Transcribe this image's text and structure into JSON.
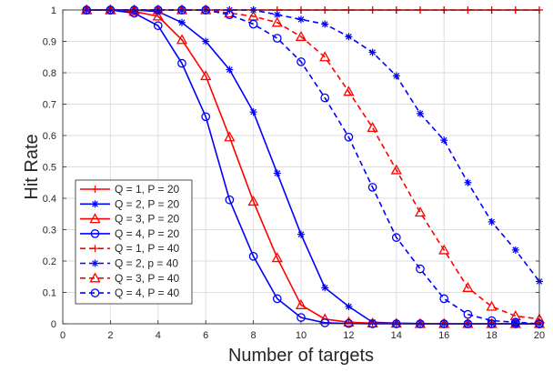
{
  "chart_data": {
    "type": "line",
    "title": "",
    "xlabel": "Number of targets",
    "ylabel": "Hit Rate",
    "xlim": [
      0,
      20
    ],
    "ylim": [
      0,
      1
    ],
    "grid": true,
    "legend_position": "bottom-left",
    "x_ticks": [
      "0",
      "2",
      "4",
      "6",
      "8",
      "10",
      "12",
      "14",
      "16",
      "18",
      "20"
    ],
    "y_ticks": [
      "0",
      "0.1",
      "0.2",
      "0.3",
      "0.4",
      "0.5",
      "0.6",
      "0.7",
      "0.8",
      "0.9",
      "1"
    ],
    "x": [
      1,
      2,
      3,
      4,
      5,
      6,
      7,
      8,
      9,
      10,
      11,
      12,
      13,
      14,
      15,
      16,
      17,
      18,
      19,
      20
    ],
    "series": [
      {
        "name": "Q = 1, P = 20",
        "color": "#ff0000",
        "line": "solid",
        "marker": "plus",
        "values": [
          1,
          1,
          1,
          1,
          1,
          1,
          1,
          1,
          1,
          1,
          1,
          1,
          1,
          1,
          1,
          1,
          1,
          1,
          1,
          1
        ]
      },
      {
        "name": "Q = 2, P = 20",
        "color": "#0000ff",
        "line": "solid",
        "marker": "star",
        "values": [
          1,
          1,
          1,
          0.995,
          0.96,
          0.9,
          0.81,
          0.675,
          0.48,
          0.285,
          0.115,
          0.055,
          0.005,
          0.002,
          0.001,
          0,
          0,
          0,
          0,
          0
        ]
      },
      {
        "name": "Q = 3, P = 20",
        "color": "#ff0000",
        "line": "solid",
        "marker": "triangle",
        "values": [
          1,
          1,
          0.995,
          0.98,
          0.905,
          0.79,
          0.595,
          0.39,
          0.21,
          0.06,
          0.015,
          0.005,
          0.002,
          0.001,
          0,
          0,
          0,
          0,
          0,
          0
        ]
      },
      {
        "name": "Q = 4, P = 20",
        "color": "#0000ff",
        "line": "solid",
        "marker": "circle",
        "values": [
          1,
          1,
          0.99,
          0.95,
          0.83,
          0.66,
          0.395,
          0.215,
          0.08,
          0.02,
          0.003,
          0.001,
          0,
          0,
          0,
          0,
          0,
          0,
          0,
          0
        ]
      },
      {
        "name": "Q = 1, P = 40",
        "color": "#ff0000",
        "line": "dashed",
        "marker": "plus",
        "values": [
          1,
          1,
          1,
          1,
          1,
          1,
          1,
          1,
          1,
          1,
          1,
          1,
          1,
          1,
          1,
          1,
          1,
          1,
          1,
          1
        ]
      },
      {
        "name": "Q = 2, p = 40",
        "color": "#0000ff",
        "line": "dashed",
        "marker": "star",
        "values": [
          1,
          1,
          1,
          1,
          1,
          1,
          1,
          1,
          0.985,
          0.97,
          0.955,
          0.915,
          0.865,
          0.79,
          0.67,
          0.585,
          0.45,
          0.325,
          0.235,
          0.135
        ]
      },
      {
        "name": "Q = 3, P = 40",
        "color": "#ff0000",
        "line": "dashed",
        "marker": "triangle",
        "values": [
          1,
          1,
          1,
          1,
          1,
          1,
          0.99,
          0.98,
          0.96,
          0.915,
          0.85,
          0.74,
          0.625,
          0.49,
          0.355,
          0.235,
          0.115,
          0.055,
          0.025,
          0.015
        ]
      },
      {
        "name": "Q = 4, P = 40",
        "color": "#0000ff",
        "line": "dashed",
        "marker": "circle",
        "values": [
          1,
          1,
          1,
          1,
          1,
          1,
          0.985,
          0.955,
          0.91,
          0.835,
          0.72,
          0.595,
          0.435,
          0.275,
          0.175,
          0.08,
          0.03,
          0.01,
          0.005,
          0
        ]
      }
    ]
  }
}
